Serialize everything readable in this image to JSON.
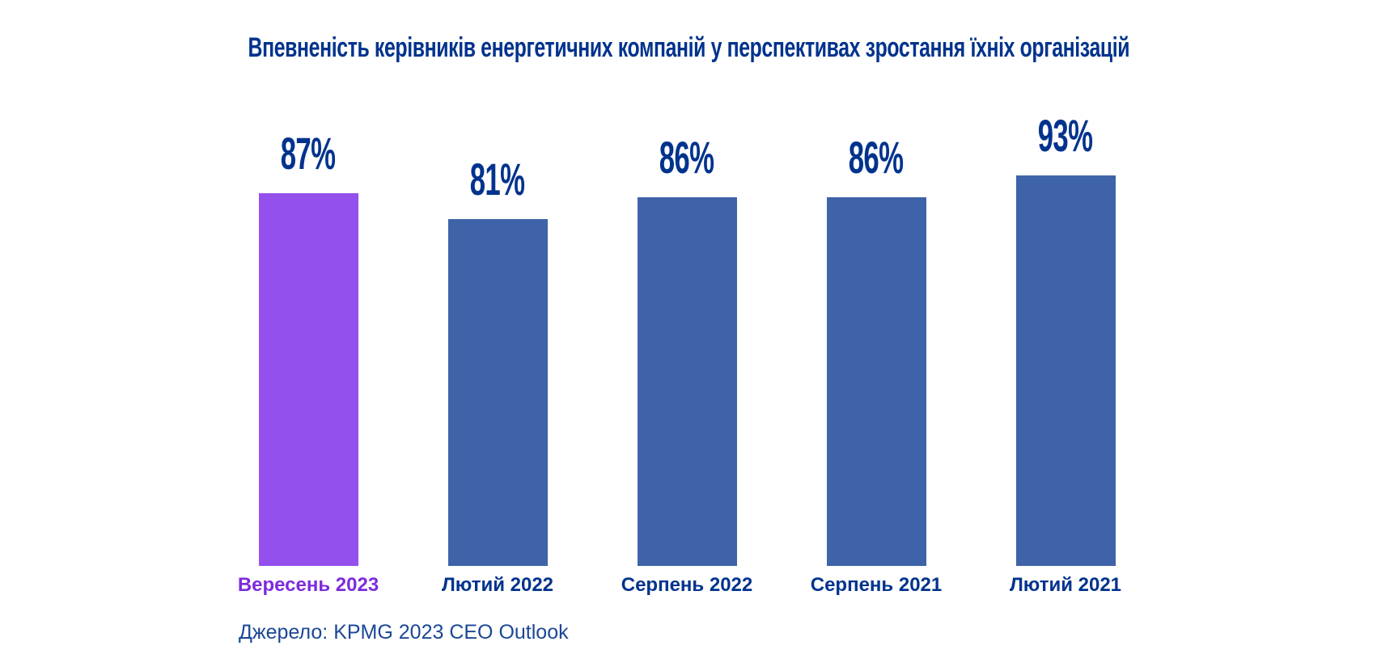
{
  "chart_data": {
    "type": "bar",
    "title": "Впевненість керівників енергетичних компаній у перспективах зростання їхніх організацій",
    "categories": [
      "Вересень 2023",
      "Лютий 2022",
      "Серпень 2022",
      "Серпень 2021",
      "Лютий 2021"
    ],
    "values": [
      87,
      81,
      86,
      86,
      93
    ],
    "value_labels": [
      "87%",
      "81%",
      "86%",
      "86%",
      "93%"
    ],
    "ylim": [
      0,
      100
    ],
    "grid": false,
    "legend": null,
    "axes_visible": false,
    "source": "Джерело: KPMG 2023 CEO Outlook",
    "colors": {
      "title_navy": "#00338D",
      "bar_blue": "#3E63A8",
      "bar_highlight_purple": "#9450EC",
      "highlight_label_purple": "#7D2BDB",
      "source_navy": "#1B4796",
      "background": "#FFFFFF"
    },
    "bar_colors": [
      "#9450EC",
      "#3E63A8",
      "#3E63A8",
      "#3E63A8",
      "#3E63A8"
    ],
    "category_label_colors": [
      "#7D2BDB",
      "#00338D",
      "#00338D",
      "#00338D",
      "#00338D"
    ]
  }
}
